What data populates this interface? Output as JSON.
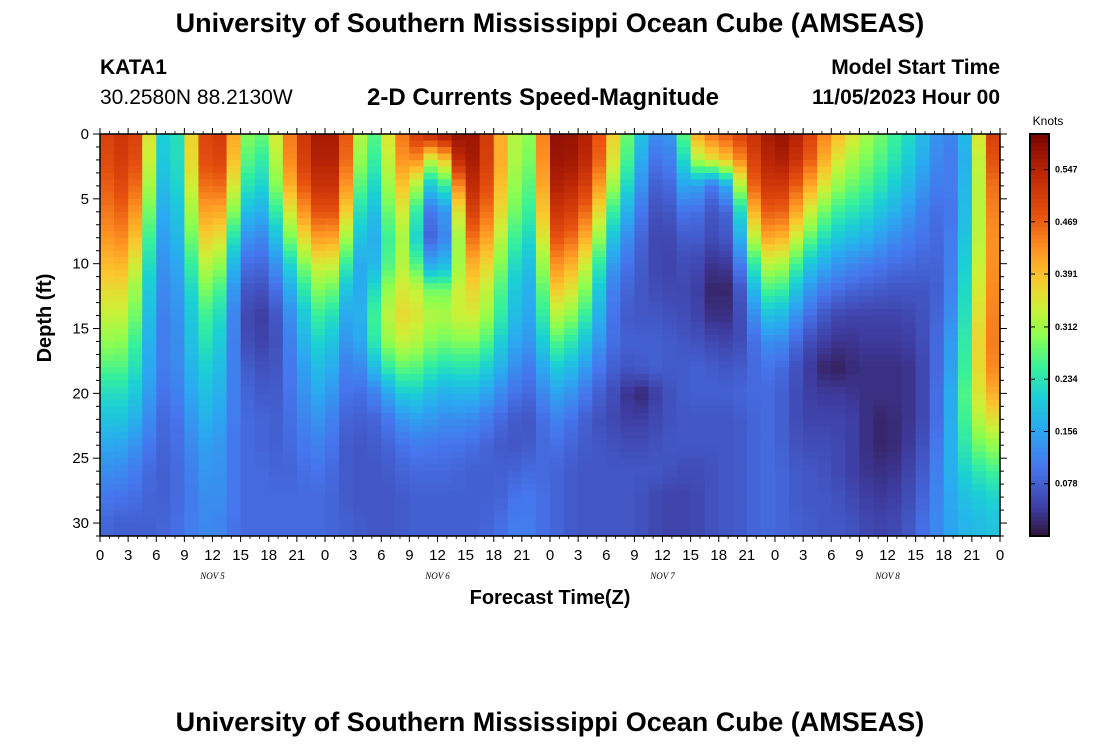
{
  "page": {
    "title": "University of Southern Mississippi Ocean Cube (AMSEAS)",
    "footer_title": "University of Southern Mississippi Ocean Cube (AMSEAS)",
    "station": "KATA1",
    "coordinates": "30.2580N  88.2130W",
    "subtitle": "2-D Currents Speed-Magnitude",
    "model_start_label": "Model Start Time",
    "model_start_value": "11/05/2023 Hour 00"
  },
  "chart_data": {
    "type": "heatmap",
    "title": "2-D Currents Speed-Magnitude",
    "xlabel": "Forecast Time(Z)",
    "ylabel": "Depth (ft)",
    "x_range_hours": [
      0,
      96
    ],
    "y_range_ft": [
      0,
      31
    ],
    "x_tick_labels": [
      "0",
      "3",
      "6",
      "9",
      "12",
      "15",
      "18",
      "21",
      "0",
      "3",
      "6",
      "9",
      "12",
      "15",
      "18",
      "21",
      "0",
      "3",
      "6",
      "9",
      "12",
      "15",
      "18",
      "21",
      "0",
      "3",
      "6",
      "9",
      "12",
      "15",
      "18",
      "21",
      "0"
    ],
    "y_ticks": [
      0,
      5,
      10,
      15,
      20,
      25,
      30
    ],
    "y_tick_labels": [
      "0",
      "5",
      "10",
      "15",
      "20",
      "25",
      "30"
    ],
    "day_labels": [
      {
        "text": "NOV 5",
        "hour": 12
      },
      {
        "text": "NOV 6",
        "hour": 36
      },
      {
        "text": "NOV 7",
        "hour": 60
      },
      {
        "text": "NOV 8",
        "hour": 84
      }
    ],
    "colorbar": {
      "unit": "Knots",
      "range": [
        0,
        0.6
      ],
      "ticks": [
        0.078,
        0.156,
        0.234,
        0.312,
        0.391,
        0.469,
        0.547
      ],
      "tick_labels": [
        "0.078",
        "0.156",
        "0.234",
        "0.312",
        "0.391",
        "0.469",
        "0.547"
      ]
    },
    "grid": false,
    "speed_field": {
      "description": "estimated current speed (knots) by forecast hour and depth",
      "columns_hours": [
        0,
        1.5,
        3,
        4.5,
        6,
        7.5,
        9,
        10.5,
        12,
        13.5,
        15,
        16.5,
        18,
        19.5,
        21,
        22.5,
        24,
        25.5,
        27,
        28.5,
        30,
        31.5,
        33,
        34.5,
        36,
        37.5,
        39,
        40.5,
        42,
        43.5,
        45,
        46.5,
        48,
        49.5,
        51,
        52.5,
        54,
        55.5,
        57,
        58.5,
        60,
        61.5,
        63,
        64.5,
        66,
        67.5,
        69,
        70.5,
        72,
        73.5,
        75,
        76.5,
        78,
        79.5,
        81,
        82.5,
        84,
        85.5,
        87,
        88.5,
        90,
        91.5,
        93,
        94.5,
        96
      ],
      "rows_ft": [
        0,
        2,
        4,
        6,
        8,
        10,
        12,
        14,
        16,
        18,
        20,
        22,
        24,
        26,
        28,
        30
      ],
      "values": [
        [
          0.49,
          0.51,
          0.53,
          0.47,
          0.24,
          0.18,
          0.28,
          0.46,
          0.53,
          0.49,
          0.33,
          0.26,
          0.3,
          0.4,
          0.49,
          0.54,
          0.58,
          0.54,
          0.41,
          0.24,
          0.3,
          0.41,
          0.49,
          0.53,
          0.56,
          0.57,
          0.58,
          0.56,
          0.46,
          0.35,
          0.3,
          0.3,
          0.58,
          0.58,
          0.57,
          0.53,
          0.43,
          0.32,
          0.24,
          0.14,
          0.12,
          0.16,
          0.38,
          0.44,
          0.46,
          0.49,
          0.51,
          0.54,
          0.58,
          0.57,
          0.53,
          0.47,
          0.41,
          0.38,
          0.33,
          0.3,
          0.27,
          0.24,
          0.21,
          0.15,
          0.12,
          0.12,
          0.25,
          0.46,
          0.55
        ],
        [
          0.48,
          0.5,
          0.52,
          0.45,
          0.23,
          0.17,
          0.28,
          0.45,
          0.52,
          0.47,
          0.31,
          0.23,
          0.26,
          0.39,
          0.48,
          0.53,
          0.57,
          0.53,
          0.39,
          0.22,
          0.28,
          0.39,
          0.46,
          0.4,
          0.27,
          0.5,
          0.57,
          0.55,
          0.46,
          0.35,
          0.29,
          0.29,
          0.57,
          0.57,
          0.56,
          0.52,
          0.41,
          0.3,
          0.22,
          0.11,
          0.09,
          0.14,
          0.3,
          0.34,
          0.37,
          0.4,
          0.47,
          0.53,
          0.56,
          0.55,
          0.5,
          0.44,
          0.37,
          0.33,
          0.3,
          0.28,
          0.25,
          0.22,
          0.19,
          0.14,
          0.11,
          0.11,
          0.23,
          0.44,
          0.52
        ],
        [
          0.46,
          0.48,
          0.5,
          0.42,
          0.21,
          0.16,
          0.27,
          0.42,
          0.49,
          0.43,
          0.27,
          0.2,
          0.23,
          0.36,
          0.45,
          0.5,
          0.55,
          0.5,
          0.35,
          0.19,
          0.25,
          0.37,
          0.4,
          0.24,
          0.16,
          0.33,
          0.54,
          0.53,
          0.44,
          0.34,
          0.27,
          0.27,
          0.55,
          0.55,
          0.53,
          0.48,
          0.36,
          0.26,
          0.18,
          0.09,
          0.07,
          0.11,
          0.2,
          0.1,
          0.11,
          0.21,
          0.43,
          0.5,
          0.53,
          0.5,
          0.44,
          0.38,
          0.32,
          0.29,
          0.27,
          0.25,
          0.22,
          0.19,
          0.16,
          0.12,
          0.1,
          0.12,
          0.24,
          0.42,
          0.49
        ],
        [
          0.44,
          0.46,
          0.47,
          0.38,
          0.19,
          0.14,
          0.25,
          0.38,
          0.45,
          0.37,
          0.22,
          0.15,
          0.19,
          0.3,
          0.4,
          0.45,
          0.51,
          0.45,
          0.3,
          0.16,
          0.22,
          0.34,
          0.35,
          0.14,
          0.07,
          0.21,
          0.5,
          0.5,
          0.41,
          0.32,
          0.25,
          0.25,
          0.52,
          0.52,
          0.49,
          0.43,
          0.3,
          0.2,
          0.14,
          0.07,
          0.06,
          0.08,
          0.12,
          0.07,
          0.07,
          0.1,
          0.34,
          0.46,
          0.48,
          0.45,
          0.37,
          0.31,
          0.26,
          0.24,
          0.23,
          0.21,
          0.18,
          0.16,
          0.13,
          0.1,
          0.09,
          0.12,
          0.25,
          0.41,
          0.47
        ],
        [
          0.42,
          0.43,
          0.44,
          0.34,
          0.17,
          0.13,
          0.23,
          0.34,
          0.41,
          0.31,
          0.16,
          0.11,
          0.14,
          0.24,
          0.34,
          0.39,
          0.45,
          0.38,
          0.25,
          0.14,
          0.2,
          0.31,
          0.32,
          0.11,
          0.06,
          0.18,
          0.45,
          0.46,
          0.37,
          0.29,
          0.22,
          0.22,
          0.48,
          0.48,
          0.44,
          0.37,
          0.24,
          0.15,
          0.11,
          0.06,
          0.05,
          0.06,
          0.09,
          0.06,
          0.06,
          0.08,
          0.26,
          0.4,
          0.42,
          0.38,
          0.3,
          0.25,
          0.21,
          0.19,
          0.18,
          0.16,
          0.14,
          0.12,
          0.11,
          0.09,
          0.09,
          0.13,
          0.26,
          0.4,
          0.46
        ],
        [
          0.39,
          0.4,
          0.4,
          0.3,
          0.15,
          0.12,
          0.2,
          0.3,
          0.36,
          0.25,
          0.11,
          0.08,
          0.1,
          0.17,
          0.27,
          0.32,
          0.38,
          0.31,
          0.19,
          0.14,
          0.22,
          0.31,
          0.34,
          0.19,
          0.13,
          0.23,
          0.4,
          0.41,
          0.33,
          0.26,
          0.19,
          0.19,
          0.43,
          0.43,
          0.38,
          0.31,
          0.18,
          0.11,
          0.09,
          0.06,
          0.05,
          0.05,
          0.07,
          0.04,
          0.03,
          0.05,
          0.17,
          0.32,
          0.34,
          0.3,
          0.22,
          0.18,
          0.15,
          0.13,
          0.12,
          0.11,
          0.1,
          0.09,
          0.09,
          0.08,
          0.09,
          0.14,
          0.28,
          0.4,
          0.46
        ],
        [
          0.36,
          0.37,
          0.36,
          0.26,
          0.14,
          0.11,
          0.18,
          0.26,
          0.32,
          0.2,
          0.08,
          0.06,
          0.07,
          0.12,
          0.21,
          0.27,
          0.32,
          0.24,
          0.15,
          0.18,
          0.27,
          0.34,
          0.36,
          0.31,
          0.26,
          0.31,
          0.37,
          0.37,
          0.3,
          0.23,
          0.17,
          0.17,
          0.38,
          0.38,
          0.33,
          0.26,
          0.14,
          0.09,
          0.08,
          0.06,
          0.06,
          0.05,
          0.06,
          0.03,
          0.01,
          0.03,
          0.11,
          0.25,
          0.27,
          0.23,
          0.16,
          0.12,
          0.1,
          0.09,
          0.08,
          0.08,
          0.07,
          0.07,
          0.07,
          0.07,
          0.09,
          0.15,
          0.29,
          0.41,
          0.46
        ],
        [
          0.33,
          0.34,
          0.33,
          0.24,
          0.13,
          0.1,
          0.17,
          0.23,
          0.28,
          0.17,
          0.07,
          0.04,
          0.05,
          0.09,
          0.17,
          0.23,
          0.27,
          0.19,
          0.13,
          0.21,
          0.3,
          0.36,
          0.37,
          0.34,
          0.31,
          0.33,
          0.35,
          0.34,
          0.28,
          0.21,
          0.16,
          0.16,
          0.33,
          0.32,
          0.28,
          0.22,
          0.12,
          0.08,
          0.07,
          0.07,
          0.07,
          0.06,
          0.06,
          0.04,
          0.02,
          0.04,
          0.08,
          0.18,
          0.2,
          0.16,
          0.11,
          0.08,
          0.06,
          0.05,
          0.05,
          0.05,
          0.05,
          0.05,
          0.06,
          0.07,
          0.1,
          0.16,
          0.3,
          0.42,
          0.46
        ],
        [
          0.3,
          0.31,
          0.29,
          0.22,
          0.12,
          0.1,
          0.16,
          0.22,
          0.25,
          0.16,
          0.07,
          0.05,
          0.05,
          0.08,
          0.15,
          0.2,
          0.23,
          0.16,
          0.12,
          0.2,
          0.28,
          0.33,
          0.34,
          0.31,
          0.28,
          0.29,
          0.3,
          0.29,
          0.24,
          0.18,
          0.14,
          0.14,
          0.27,
          0.26,
          0.22,
          0.17,
          0.11,
          0.08,
          0.08,
          0.08,
          0.08,
          0.07,
          0.07,
          0.06,
          0.05,
          0.05,
          0.07,
          0.12,
          0.14,
          0.11,
          0.07,
          0.05,
          0.04,
          0.03,
          0.04,
          0.04,
          0.04,
          0.04,
          0.05,
          0.07,
          0.11,
          0.18,
          0.31,
          0.43,
          0.46
        ],
        [
          0.26,
          0.27,
          0.26,
          0.2,
          0.12,
          0.1,
          0.15,
          0.2,
          0.22,
          0.15,
          0.08,
          0.07,
          0.06,
          0.08,
          0.13,
          0.17,
          0.2,
          0.13,
          0.1,
          0.15,
          0.22,
          0.27,
          0.28,
          0.26,
          0.23,
          0.23,
          0.24,
          0.23,
          0.19,
          0.15,
          0.11,
          0.11,
          0.21,
          0.2,
          0.17,
          0.12,
          0.09,
          0.07,
          0.07,
          0.08,
          0.08,
          0.07,
          0.08,
          0.08,
          0.07,
          0.07,
          0.08,
          0.1,
          0.1,
          0.08,
          0.05,
          0.03,
          0.01,
          0.02,
          0.03,
          0.03,
          0.03,
          0.03,
          0.04,
          0.07,
          0.11,
          0.19,
          0.31,
          0.42,
          0.45
        ],
        [
          0.22,
          0.23,
          0.22,
          0.18,
          0.11,
          0.09,
          0.14,
          0.18,
          0.2,
          0.14,
          0.09,
          0.08,
          0.07,
          0.08,
          0.12,
          0.15,
          0.17,
          0.11,
          0.09,
          0.1,
          0.13,
          0.19,
          0.22,
          0.2,
          0.17,
          0.17,
          0.18,
          0.17,
          0.14,
          0.11,
          0.09,
          0.09,
          0.16,
          0.15,
          0.12,
          0.09,
          0.07,
          0.05,
          0.02,
          0.03,
          0.06,
          0.07,
          0.08,
          0.08,
          0.08,
          0.08,
          0.09,
          0.09,
          0.09,
          0.07,
          0.05,
          0.04,
          0.04,
          0.04,
          0.03,
          0.03,
          0.03,
          0.03,
          0.04,
          0.07,
          0.12,
          0.21,
          0.32,
          0.39,
          0.42
        ],
        [
          0.19,
          0.2,
          0.19,
          0.15,
          0.1,
          0.08,
          0.12,
          0.16,
          0.18,
          0.13,
          0.09,
          0.09,
          0.08,
          0.08,
          0.11,
          0.13,
          0.14,
          0.09,
          0.08,
          0.08,
          0.09,
          0.12,
          0.15,
          0.15,
          0.13,
          0.13,
          0.13,
          0.12,
          0.1,
          0.08,
          0.07,
          0.07,
          0.12,
          0.11,
          0.09,
          0.07,
          0.06,
          0.05,
          0.04,
          0.05,
          0.06,
          0.07,
          0.07,
          0.07,
          0.07,
          0.07,
          0.08,
          0.09,
          0.09,
          0.07,
          0.05,
          0.05,
          0.05,
          0.05,
          0.04,
          0.02,
          0.02,
          0.03,
          0.04,
          0.07,
          0.12,
          0.21,
          0.3,
          0.35,
          0.37
        ],
        [
          0.16,
          0.16,
          0.15,
          0.12,
          0.09,
          0.08,
          0.11,
          0.14,
          0.16,
          0.12,
          0.09,
          0.09,
          0.08,
          0.08,
          0.1,
          0.11,
          0.12,
          0.08,
          0.07,
          0.07,
          0.08,
          0.09,
          0.11,
          0.11,
          0.1,
          0.1,
          0.1,
          0.09,
          0.08,
          0.07,
          0.07,
          0.08,
          0.1,
          0.09,
          0.08,
          0.07,
          0.07,
          0.06,
          0.06,
          0.06,
          0.07,
          0.07,
          0.07,
          0.07,
          0.07,
          0.07,
          0.08,
          0.09,
          0.09,
          0.07,
          0.06,
          0.06,
          0.06,
          0.05,
          0.04,
          0.02,
          0.02,
          0.03,
          0.05,
          0.08,
          0.13,
          0.21,
          0.27,
          0.3,
          0.31
        ],
        [
          0.13,
          0.13,
          0.12,
          0.1,
          0.08,
          0.08,
          0.1,
          0.13,
          0.15,
          0.12,
          0.09,
          0.09,
          0.09,
          0.08,
          0.09,
          0.1,
          0.1,
          0.08,
          0.07,
          0.07,
          0.07,
          0.08,
          0.09,
          0.09,
          0.09,
          0.09,
          0.08,
          0.08,
          0.08,
          0.08,
          0.09,
          0.09,
          0.09,
          0.08,
          0.07,
          0.07,
          0.07,
          0.07,
          0.07,
          0.07,
          0.07,
          0.06,
          0.06,
          0.06,
          0.07,
          0.07,
          0.08,
          0.09,
          0.09,
          0.08,
          0.07,
          0.07,
          0.06,
          0.05,
          0.04,
          0.03,
          0.03,
          0.04,
          0.06,
          0.09,
          0.14,
          0.2,
          0.23,
          0.25,
          0.26
        ],
        [
          0.11,
          0.1,
          0.1,
          0.09,
          0.08,
          0.08,
          0.1,
          0.12,
          0.14,
          0.12,
          0.09,
          0.09,
          0.09,
          0.09,
          0.09,
          0.09,
          0.09,
          0.08,
          0.07,
          0.07,
          0.07,
          0.07,
          0.08,
          0.08,
          0.08,
          0.08,
          0.08,
          0.08,
          0.08,
          0.09,
          0.11,
          0.1,
          0.09,
          0.08,
          0.07,
          0.07,
          0.07,
          0.07,
          0.07,
          0.06,
          0.05,
          0.05,
          0.05,
          0.06,
          0.07,
          0.07,
          0.08,
          0.09,
          0.09,
          0.08,
          0.07,
          0.07,
          0.07,
          0.06,
          0.05,
          0.04,
          0.04,
          0.05,
          0.07,
          0.1,
          0.14,
          0.18,
          0.2,
          0.21,
          0.22
        ],
        [
          0.09,
          0.08,
          0.08,
          0.08,
          0.08,
          0.09,
          0.1,
          0.12,
          0.13,
          0.11,
          0.09,
          0.09,
          0.09,
          0.09,
          0.09,
          0.09,
          0.09,
          0.08,
          0.08,
          0.07,
          0.07,
          0.07,
          0.08,
          0.08,
          0.08,
          0.08,
          0.08,
          0.08,
          0.09,
          0.1,
          0.12,
          0.1,
          0.09,
          0.08,
          0.07,
          0.07,
          0.07,
          0.07,
          0.07,
          0.06,
          0.05,
          0.05,
          0.05,
          0.06,
          0.07,
          0.07,
          0.08,
          0.09,
          0.09,
          0.08,
          0.08,
          0.07,
          0.07,
          0.07,
          0.06,
          0.05,
          0.05,
          0.06,
          0.08,
          0.11,
          0.14,
          0.17,
          0.18,
          0.19,
          0.2
        ]
      ]
    }
  }
}
